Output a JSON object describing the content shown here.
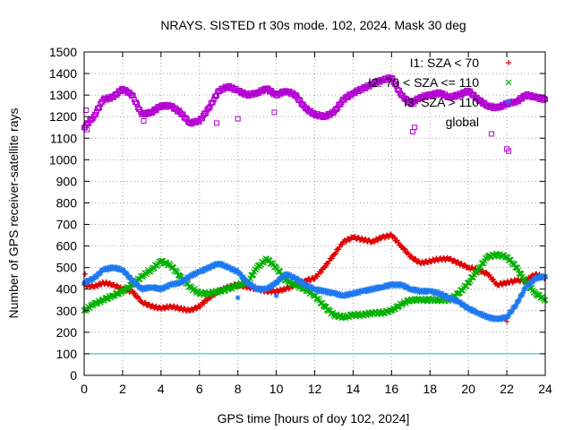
{
  "chart_data": {
    "type": "scatter",
    "title": "NRAYS. SISTED rt 30s mode. 102, 2024. Mask 30 deg",
    "xlabel": "GPS time [hours of doy 102, 2024]",
    "ylabel": "Number of GPS receiver-satellite rays",
    "xlim": [
      0,
      24
    ],
    "ylim": [
      0,
      1500
    ],
    "xticks": [
      "0",
      "2",
      "4",
      "6",
      "8",
      "10",
      "12",
      "14",
      "16",
      "18",
      "20",
      "22",
      "24"
    ],
    "yticks": [
      "0",
      "100",
      "200",
      "300",
      "400",
      "500",
      "600",
      "700",
      "800",
      "900",
      "1000",
      "1100",
      "1200",
      "1300",
      "1400",
      "1500"
    ],
    "grid": true,
    "legend_position": "top-right",
    "threshold_line": {
      "y": 100,
      "color": "#00c8d2"
    },
    "series": [
      {
        "name": "I1: SZA < 70",
        "marker": "+",
        "color": "#e00000",
        "x": [
          0,
          0.5,
          1,
          1.5,
          2,
          2.5,
          3,
          3.5,
          4,
          4.5,
          5,
          5.5,
          6,
          6.5,
          7,
          7.5,
          8,
          8.5,
          9,
          9.5,
          10,
          10.5,
          11,
          11.5,
          12,
          12.5,
          13,
          13.5,
          14,
          14.5,
          15,
          15.5,
          16,
          16.5,
          17,
          17.5,
          18,
          18.5,
          19,
          19.5,
          20,
          20.5,
          21,
          21.5,
          22,
          22.5,
          23,
          23.5,
          24
        ],
        "values": [
          420,
          410,
          430,
          420,
          400,
          390,
          340,
          320,
          310,
          320,
          310,
          300,
          320,
          360,
          390,
          410,
          420,
          410,
          400,
          390,
          390,
          400,
          420,
          440,
          450,
          500,
          560,
          620,
          640,
          630,
          620,
          640,
          650,
          600,
          550,
          520,
          530,
          540,
          540,
          520,
          500,
          490,
          470,
          420,
          430,
          440,
          440,
          470,
          450
        ]
      },
      {
        "name": "I2: 70 < SZA <= 110",
        "marker": "x",
        "color": "#00b000",
        "x": [
          0,
          0.5,
          1,
          1.5,
          2,
          2.5,
          3,
          3.5,
          4,
          4.5,
          5,
          5.5,
          6,
          6.5,
          7,
          7.5,
          8,
          8.5,
          9,
          9.5,
          10,
          10.5,
          11,
          11.5,
          12,
          12.5,
          13,
          13.5,
          14,
          14.5,
          15,
          15.5,
          16,
          16.5,
          17,
          17.5,
          18,
          18.5,
          19,
          19.5,
          20,
          20.5,
          21,
          21.5,
          22,
          22.5,
          23,
          23.5,
          24
        ],
        "values": [
          300,
          330,
          350,
          370,
          390,
          420,
          460,
          490,
          530,
          510,
          460,
          410,
          380,
          380,
          390,
          400,
          420,
          430,
          500,
          540,
          500,
          440,
          420,
          400,
          370,
          320,
          280,
          270,
          280,
          280,
          290,
          290,
          300,
          330,
          350,
          350,
          350,
          350,
          350,
          380,
          430,
          490,
          550,
          560,
          550,
          500,
          430,
          380,
          350
        ]
      },
      {
        "name": "I3: SZA > 110",
        "marker": "*",
        "color": "#1e78f0",
        "x": [
          0,
          0.5,
          1,
          1.5,
          2,
          2.5,
          3,
          3.5,
          4,
          4.5,
          5,
          5.5,
          6,
          6.5,
          7,
          7.5,
          8,
          8.5,
          9,
          9.5,
          10,
          10.5,
          11,
          11.5,
          12,
          12.5,
          13,
          13.5,
          14,
          14.5,
          15,
          15.5,
          16,
          16.5,
          17,
          17.5,
          18,
          18.5,
          19,
          19.5,
          20,
          20.5,
          21,
          21.5,
          22,
          22.5,
          23,
          23.5,
          24
        ],
        "values": [
          430,
          450,
          490,
          500,
          490,
          440,
          400,
          410,
          400,
          420,
          430,
          460,
          480,
          500,
          520,
          500,
          480,
          430,
          400,
          400,
          430,
          470,
          450,
          420,
          400,
          390,
          380,
          370,
          380,
          390,
          400,
          410,
          420,
          420,
          400,
          390,
          390,
          380,
          360,
          340,
          310,
          290,
          270,
          260,
          270,
          330,
          410,
          450,
          460
        ]
      },
      {
        "name": "global",
        "marker": "square",
        "color": "#b400d2",
        "x": [
          0,
          0.5,
          1,
          1.5,
          2,
          2.5,
          3,
          3.5,
          4,
          4.5,
          5,
          5.5,
          6,
          6.5,
          7,
          7.5,
          8,
          8.5,
          9,
          9.5,
          10,
          10.5,
          11,
          11.5,
          12,
          12.5,
          13,
          13.5,
          14,
          14.5,
          15,
          15.5,
          16,
          16.5,
          17,
          17.5,
          18,
          18.5,
          19,
          19.5,
          20,
          20.5,
          21,
          21.5,
          22,
          22.5,
          23,
          23.5,
          24
        ],
        "values": [
          1150,
          1200,
          1280,
          1290,
          1330,
          1300,
          1210,
          1220,
          1250,
          1250,
          1220,
          1170,
          1180,
          1240,
          1320,
          1340,
          1320,
          1300,
          1310,
          1330,
          1300,
          1320,
          1300,
          1240,
          1210,
          1200,
          1220,
          1280,
          1310,
          1330,
          1350,
          1370,
          1380,
          1300,
          1260,
          1290,
          1300,
          1310,
          1290,
          1300,
          1320,
          1280,
          1250,
          1240,
          1260,
          1270,
          1300,
          1290,
          1280
        ]
      }
    ],
    "outliers": {
      "x": [
        0.1,
        0.15,
        3.1,
        6.9,
        8.0,
        9.9,
        17.1,
        17.2,
        21.2,
        22.0,
        22.1
      ],
      "values": [
        1230,
        1140,
        1180,
        1170,
        1190,
        1220,
        1130,
        1150,
        1120,
        1050,
        1040
      ]
    }
  }
}
